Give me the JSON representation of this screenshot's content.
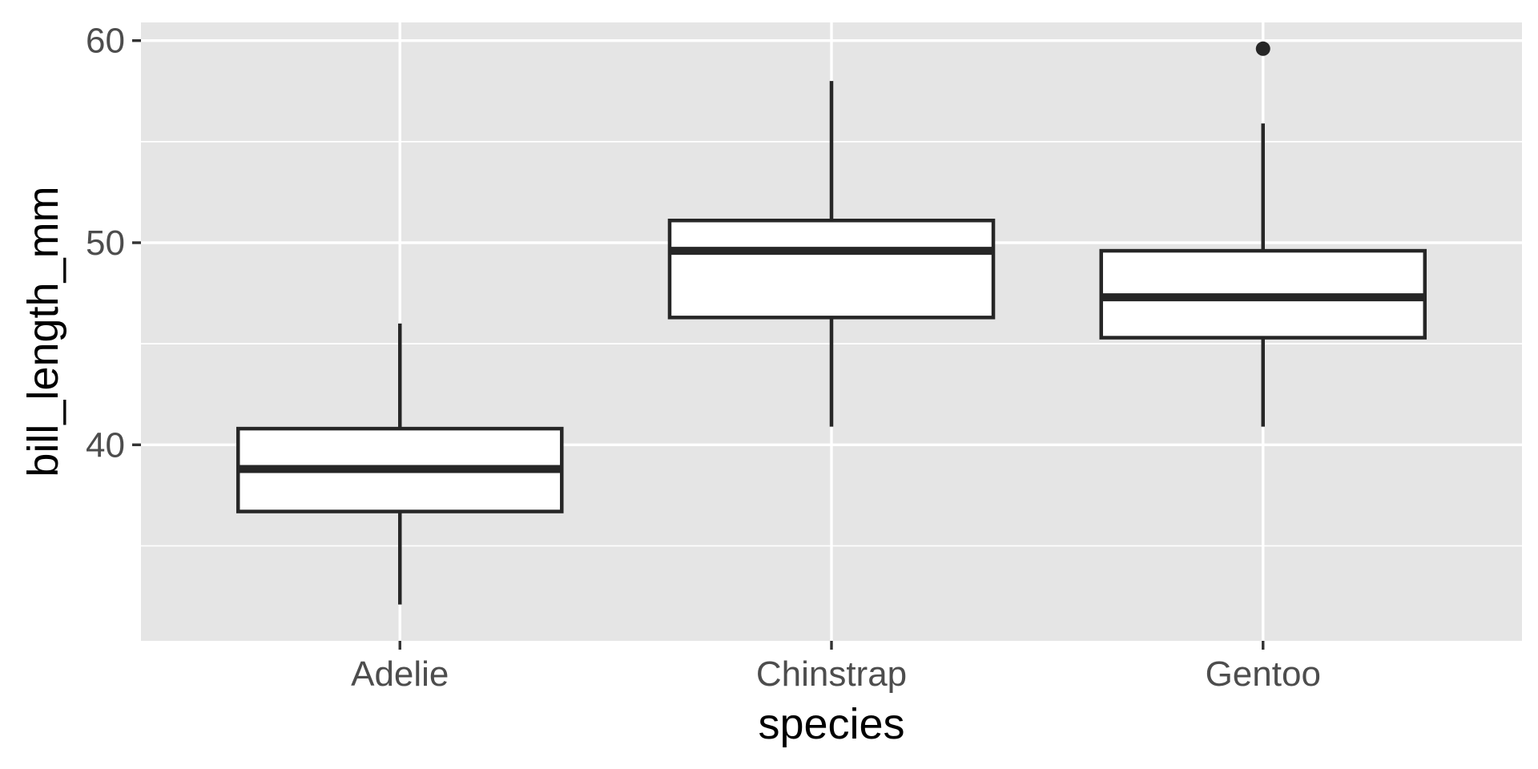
{
  "chart_data": {
    "type": "boxplot",
    "xlabel": "species",
    "ylabel": "bill_length_mm",
    "categories": [
      "Adelie",
      "Chinstrap",
      "Gentoo"
    ],
    "ylim": [
      30.3,
      60.9
    ],
    "yticks": [
      40,
      50,
      60
    ],
    "yticks_labels": [
      "40",
      "50",
      "60"
    ],
    "y_minor_ticks": [
      35,
      45,
      55
    ],
    "grid": true,
    "background_color": "#e5e5e5",
    "box_color": "#262626",
    "boxes": [
      {
        "category": "Adelie",
        "whisker_low": 32.1,
        "q1": 36.7,
        "median": 38.8,
        "q3": 40.8,
        "whisker_high": 46.0,
        "outliers": []
      },
      {
        "category": "Chinstrap",
        "whisker_low": 40.9,
        "q1": 46.3,
        "median": 49.6,
        "q3": 51.1,
        "whisker_high": 58.0,
        "outliers": []
      },
      {
        "category": "Gentoo",
        "whisker_low": 40.9,
        "q1": 45.3,
        "median": 47.3,
        "q3": 49.6,
        "whisker_high": 55.9,
        "outliers": [
          59.6
        ]
      }
    ]
  }
}
